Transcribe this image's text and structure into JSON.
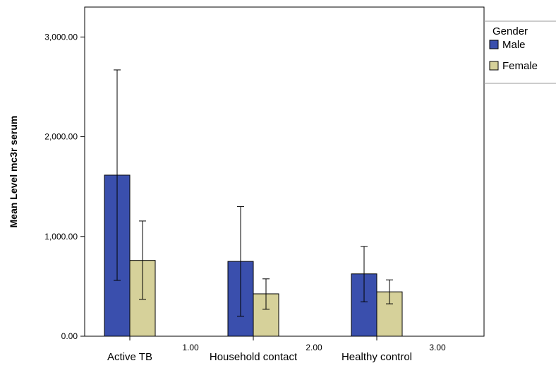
{
  "chart_data": {
    "type": "bar",
    "ylabel": "Mean Level mc3r serum",
    "ylim": [
      0,
      3300
    ],
    "y_ticks": [
      0,
      1000,
      2000,
      3000
    ],
    "y_tick_labels": [
      "0.00",
      "1,000.00",
      "2,000.00",
      "3,000.00"
    ],
    "x_tick_positions": [
      1,
      2,
      3
    ],
    "x_tick_labels": [
      "1.00",
      "2.00",
      "3.00"
    ],
    "categories": [
      "Active TB",
      "Household contact",
      "Healthy control"
    ],
    "legend": {
      "title": "Gender",
      "position": "right"
    },
    "grid": false,
    "error_bars": true,
    "series": [
      {
        "name": "Male",
        "color": "#3a4fad",
        "values": [
          1615,
          750,
          625
        ],
        "err_low": [
          560,
          200,
          345
        ],
        "err_high": [
          2670,
          1300,
          900
        ]
      },
      {
        "name": "Female",
        "color": "#d6d19a",
        "values": [
          760,
          425,
          445
        ],
        "err_low": [
          370,
          270,
          325
        ],
        "err_high": [
          1155,
          575,
          565
        ]
      }
    ]
  }
}
